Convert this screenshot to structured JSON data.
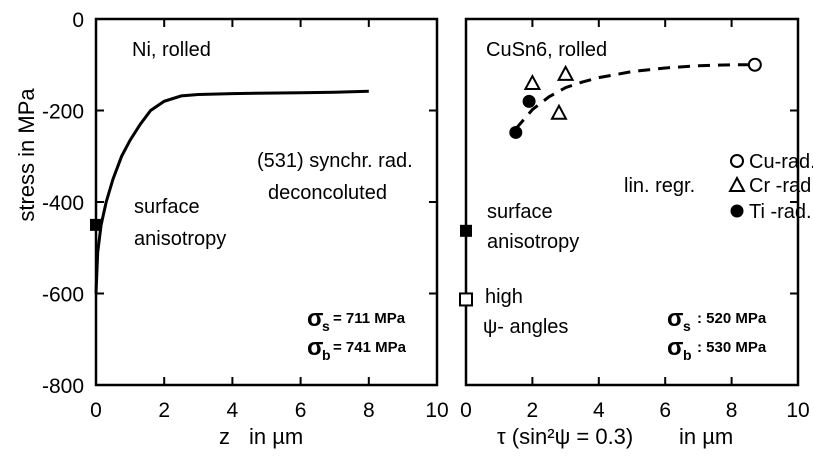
{
  "chart_data": {
    "type": "line",
    "y_axis": {
      "label": "stress in MPa",
      "range": [
        -800,
        0
      ],
      "ticks": [
        "0",
        "-200",
        "-400",
        "-600",
        "-800"
      ]
    },
    "panels": [
      {
        "id": "left",
        "title": "Ni, rolled",
        "x_axis": {
          "label_main": "z",
          "label_unit": "in µm",
          "range": [
            0,
            10
          ],
          "ticks": [
            "0",
            "2",
            "4",
            "6",
            "8",
            "10"
          ]
        },
        "curve": {
          "type": "line",
          "x": [
            0,
            0.05,
            0.15,
            0.3,
            0.5,
            0.75,
            1.0,
            1.3,
            1.6,
            2.0,
            2.5,
            3.0,
            4.0,
            5.0,
            6.0,
            7.0,
            8.0
          ],
          "y": [
            -600,
            -510,
            -450,
            -400,
            -350,
            -300,
            -265,
            -230,
            -200,
            -180,
            -168,
            -165,
            -163,
            -162,
            -161,
            -160,
            -158
          ]
        },
        "markers": [
          {
            "x": 0,
            "y": -450,
            "style": "filled-square"
          }
        ],
        "annotations": {
          "method_line1": "(531) synchr. rad.",
          "method_line2": "deconcoluted",
          "surface_line1": "surface",
          "surface_line2": "anisotropy",
          "sigma_s_symbol": "σ",
          "sigma_s_sub": "s",
          "sigma_s_value": "= 711 MPa",
          "sigma_b_symbol": "σ",
          "sigma_b_sub": "b",
          "sigma_b_value": "= 741 MPa"
        }
      },
      {
        "id": "right",
        "title": "CuSn6, rolled",
        "x_axis": {
          "label_main": "τ (sin²ψ = 0.3)",
          "label_unit": "in µm",
          "range": [
            0,
            10
          ],
          "ticks": [
            "0",
            "2",
            "4",
            "6",
            "8",
            "10"
          ]
        },
        "series": [
          {
            "name": "Cu-rad.",
            "marker": "open-circle",
            "x": [
              8.7
            ],
            "y": [
              -100
            ]
          },
          {
            "name": "Cr -rad.",
            "marker": "open-triangle",
            "x": [
              2.0,
              3.0,
              2.8
            ],
            "y": [
              -140,
              -120,
              -205
            ]
          },
          {
            "name": "Ti -rad.",
            "marker": "filled-circle",
            "x": [
              1.5,
              1.9
            ],
            "y": [
              -248,
              -180
            ]
          }
        ],
        "fit": {
          "name": "lin. regr.",
          "style": "dashed",
          "x": [
            1.5,
            2.0,
            2.5,
            3.0,
            3.5,
            4.0,
            5.0,
            6.0,
            7.0,
            8.0,
            8.7
          ],
          "y": [
            -240,
            -198,
            -170,
            -150,
            -138,
            -128,
            -115,
            -107,
            -102,
            -100,
            -100
          ]
        },
        "markers": [
          {
            "x": 0,
            "y": -463,
            "style": "filled-square"
          },
          {
            "x": 0,
            "y": -613,
            "style": "open-square"
          }
        ],
        "annotations": {
          "surface_line1": "surface",
          "surface_line2": "anisotropy",
          "high_line1": "high",
          "high_line2": "ψ- angles",
          "lin_regr": "lin. regr.",
          "sigma_s_symbol": "σ",
          "sigma_s_sub": "s",
          "sigma_s_value": ": 520 MPa",
          "sigma_b_symbol": "σ",
          "sigma_b_sub": "b",
          "sigma_b_value": ": 530 MPa"
        }
      }
    ]
  }
}
